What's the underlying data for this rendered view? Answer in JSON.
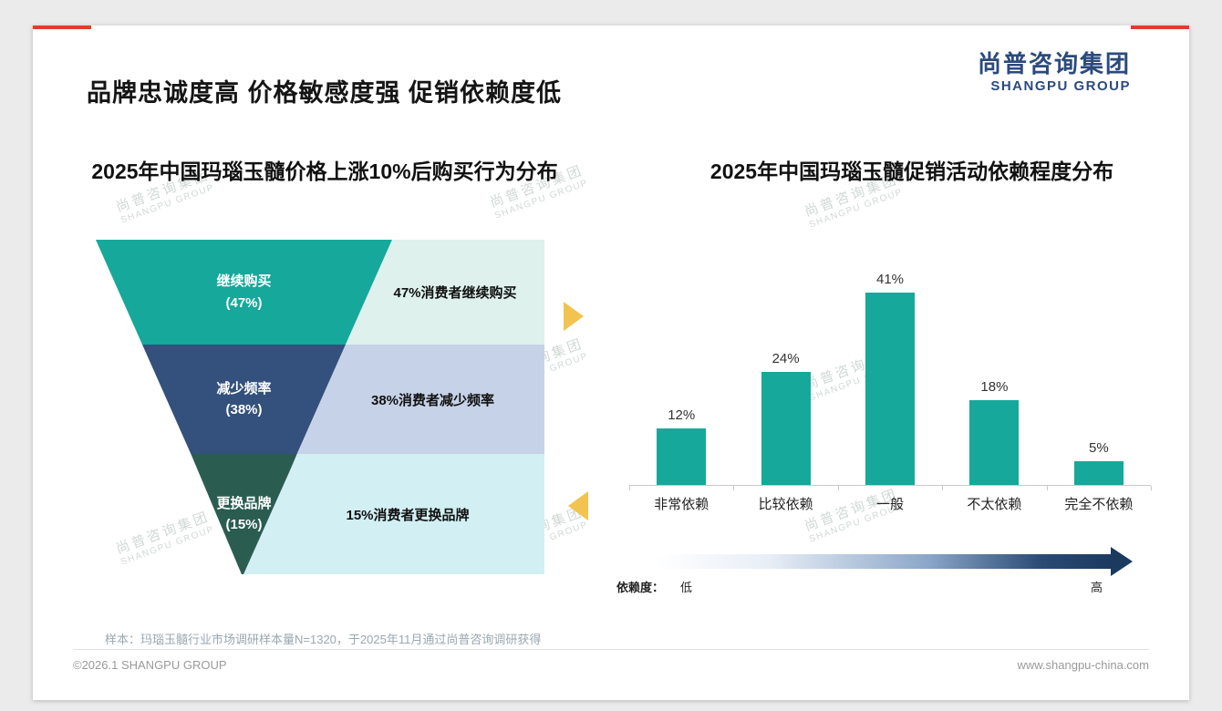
{
  "slide": {
    "title": "品牌忠诚度高 价格敏感度强 促销依赖度低",
    "logo": {
      "cn": "尚普咨询集团",
      "en": "SHANGPU GROUP"
    },
    "watermark": {
      "cn": "尚普咨询集团",
      "en": "SHANGPU GROUP"
    },
    "footnote": "样本：玛瑙玉髓行业市场调研样本量N=1320，于2025年11月通过尚普咨询调研获得",
    "footer": {
      "copyright": "©2026.1 SHANGPU GROUP",
      "website": "www.shangpu-china.com"
    },
    "colors": {
      "teal": "#16a89a",
      "dark_blue": "#33517c",
      "dark_green": "#2a5d50",
      "accent_red": "#e03c31",
      "logo_blue": "#2b4a7d",
      "arrow_gold": "#f2c34e"
    }
  },
  "chart_data": [
    {
      "type": "funnel",
      "title": "2025年中国玛瑙玉髓价格上涨10%后购买行为分布",
      "segments": [
        {
          "label": "继续购买",
          "value": 47,
          "value_label": "(47%)",
          "desc": "47%消费者继续购买"
        },
        {
          "label": "减少频率",
          "value": 38,
          "value_label": "(38%)",
          "desc": "38%消费者减少频率"
        },
        {
          "label": "更换品牌",
          "value": 15,
          "value_label": "(15%)",
          "desc": "15%消费者更换品牌"
        }
      ]
    },
    {
      "type": "bar",
      "title": "2025年中国玛瑙玉髓促销活动依赖程度分布",
      "categories": [
        "非常依赖",
        "比较依赖",
        "一般",
        "不太依赖",
        "完全不依赖"
      ],
      "values": [
        12,
        24,
        41,
        18,
        5
      ],
      "value_labels": [
        "12%",
        "24%",
        "41%",
        "18%",
        "5%"
      ],
      "ylim": [
        0,
        45
      ],
      "grid": false,
      "legend_axis": {
        "label": "依赖度：",
        "low": "低",
        "high": "高"
      }
    }
  ]
}
